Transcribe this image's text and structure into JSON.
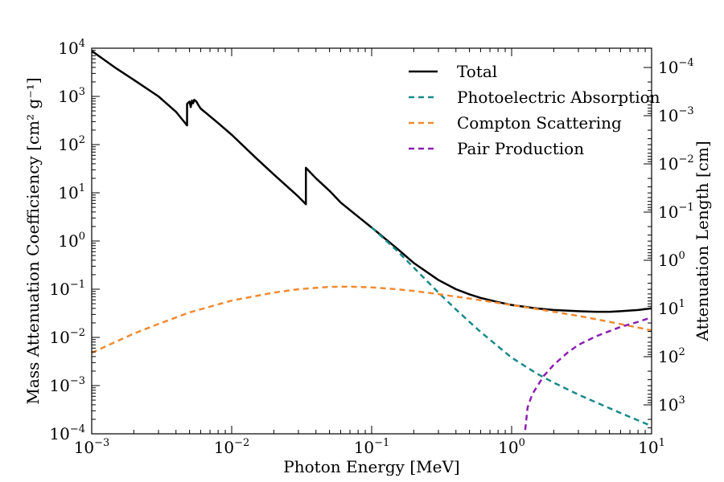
{
  "chart_data": {
    "type": "line",
    "xscale": "log",
    "yscale": "log",
    "xlim": [
      0.001,
      10
    ],
    "ylim": [
      0.0001,
      10000
    ],
    "xlabel": "Photon Energy [MeV]",
    "ylabel": "Mass Attenuation Coefficiency [cm² g⁻¹]",
    "ylabel_right": "Attenuation Length [cm]",
    "x_ticks": [
      {
        "base": "10",
        "exp": "−3"
      },
      {
        "base": "10",
        "exp": "−2"
      },
      {
        "base": "10",
        "exp": "−1"
      },
      {
        "base": "10",
        "exp": "0"
      },
      {
        "base": "10",
        "exp": "1"
      }
    ],
    "y_ticks": [
      {
        "base": "10",
        "exp": "−4"
      },
      {
        "base": "10",
        "exp": "−3"
      },
      {
        "base": "10",
        "exp": "−2"
      },
      {
        "base": "10",
        "exp": "−1"
      },
      {
        "base": "10",
        "exp": "0"
      },
      {
        "base": "10",
        "exp": "1"
      },
      {
        "base": "10",
        "exp": "2"
      },
      {
        "base": "10",
        "exp": "3"
      },
      {
        "base": "10",
        "exp": "4"
      }
    ],
    "y_right_ticks": [
      {
        "base": "10",
        "exp": "3"
      },
      {
        "base": "10",
        "exp": "2"
      },
      {
        "base": "10",
        "exp": "1"
      },
      {
        "base": "10",
        "exp": "0"
      },
      {
        "base": "10",
        "exp": "−1"
      },
      {
        "base": "10",
        "exp": "−2"
      },
      {
        "base": "10",
        "exp": "−3"
      },
      {
        "base": "10",
        "exp": "−4"
      }
    ],
    "legend_position": "top-right",
    "grid": false,
    "series": [
      {
        "name": "Total",
        "color": "#000000",
        "dash": "solid",
        "x": [
          0.001,
          0.0015,
          0.002,
          0.003,
          0.004,
          0.0048,
          0.0048,
          0.005,
          0.0051,
          0.0052,
          0.0053,
          0.0054,
          0.0056,
          0.0058,
          0.006,
          0.008,
          0.01,
          0.015,
          0.02,
          0.03,
          0.0339,
          0.0339,
          0.04,
          0.05,
          0.06,
          0.08,
          0.1,
          0.15,
          0.2,
          0.3,
          0.4,
          0.5,
          0.6,
          0.8,
          1,
          1.5,
          2,
          3,
          4,
          5,
          6,
          8,
          10
        ],
        "y": [
          8800,
          3800,
          2200,
          1000,
          480,
          250,
          700,
          780,
          600,
          820,
          720,
          850,
          780,
          650,
          560,
          280,
          160,
          52,
          24,
          8.3,
          5.8,
          33,
          20,
          11,
          6.3,
          3.2,
          1.9,
          0.72,
          0.35,
          0.155,
          0.1,
          0.078,
          0.066,
          0.054,
          0.047,
          0.04,
          0.037,
          0.035,
          0.034,
          0.034,
          0.035,
          0.037,
          0.04
        ]
      },
      {
        "name": "Photoelectric Absorption",
        "color": "#1a8a8a",
        "dash": "dashed",
        "x": [
          0.1,
          0.15,
          0.2,
          0.3,
          0.4,
          0.5,
          0.6,
          0.8,
          1,
          1.5,
          2,
          3,
          4,
          5,
          6,
          8,
          10
        ],
        "y": [
          1.9,
          0.65,
          0.28,
          0.085,
          0.038,
          0.021,
          0.013,
          0.0065,
          0.0038,
          0.0018,
          0.00115,
          0.00065,
          0.00045,
          0.00034,
          0.00027,
          0.00019,
          0.000145
        ]
      },
      {
        "name": "Compton Scattering",
        "color": "#f28a30",
        "dash": "dashed",
        "x": [
          0.001,
          0.002,
          0.003,
          0.005,
          0.01,
          0.02,
          0.03,
          0.05,
          0.07,
          0.1,
          0.15,
          0.2,
          0.3,
          0.5,
          1,
          2,
          3,
          5,
          8,
          10
        ],
        "y": [
          0.0048,
          0.012,
          0.019,
          0.033,
          0.058,
          0.085,
          0.1,
          0.112,
          0.113,
          0.109,
          0.1,
          0.092,
          0.079,
          0.064,
          0.047,
          0.034,
          0.028,
          0.021,
          0.016,
          0.014
        ]
      },
      {
        "name": "Pair Production",
        "color": "#8a20b0",
        "dash": "dashed",
        "x": [
          1.25,
          1.3,
          1.4,
          1.5,
          1.7,
          2,
          2.5,
          3,
          4,
          5,
          6,
          8,
          10
        ],
        "y": [
          0.00012,
          0.00035,
          0.00065,
          0.0009,
          0.0016,
          0.0027,
          0.0048,
          0.007,
          0.0105,
          0.0135,
          0.0165,
          0.021,
          0.026
        ]
      }
    ]
  }
}
